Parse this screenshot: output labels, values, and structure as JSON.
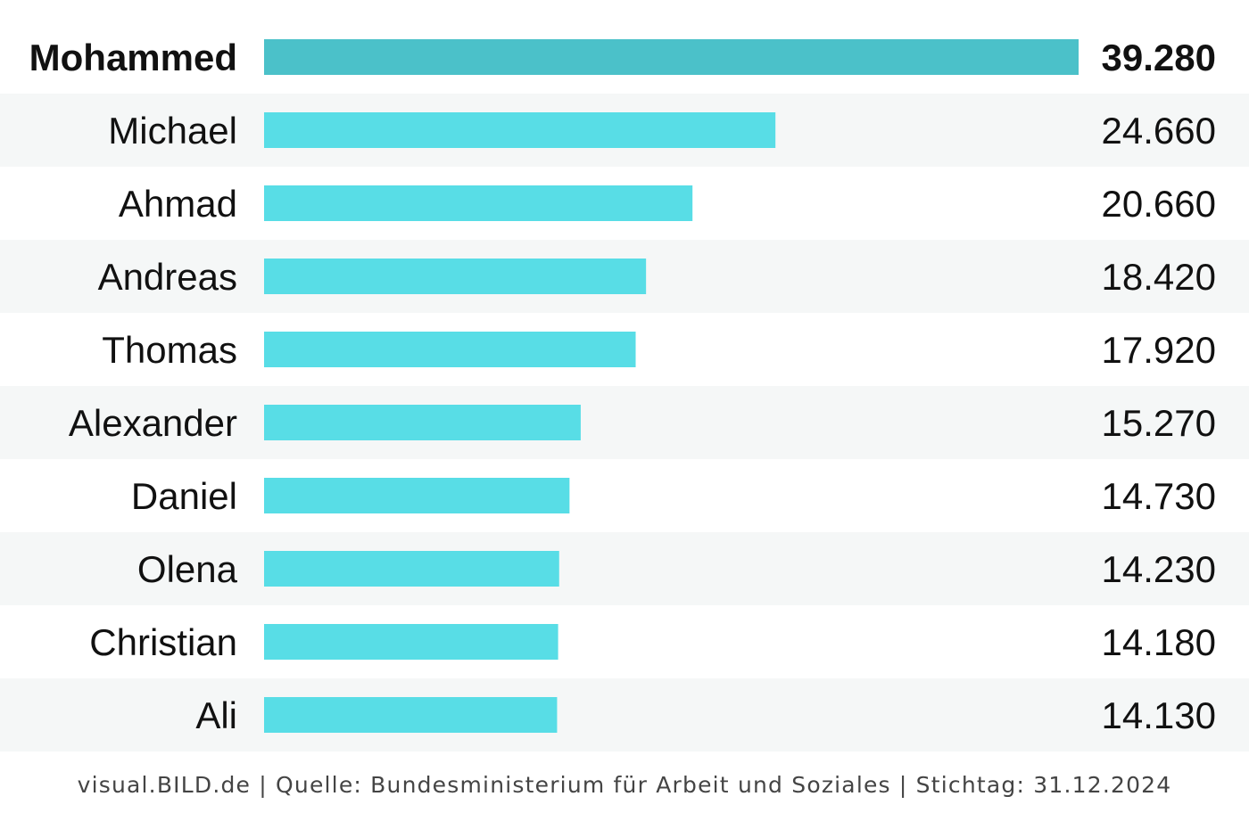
{
  "chart_data": {
    "type": "bar",
    "orientation": "horizontal",
    "categories": [
      "Mohammed",
      "Michael",
      "Ahmad",
      "Andreas",
      "Thomas",
      "Alexander",
      "Daniel",
      "Olena",
      "Christian",
      "Ali"
    ],
    "values": [
      39280,
      24660,
      20660,
      18420,
      17920,
      15270,
      14730,
      14230,
      14180,
      14130
    ],
    "value_labels": [
      "39.280",
      "24.660",
      "20.660",
      "18.420",
      "17.920",
      "15.270",
      "14.730",
      "14.230",
      "14.180",
      "14.130"
    ],
    "highlighted_category": "Mohammed",
    "xlim": [
      0,
      39280
    ],
    "grid": false,
    "legend": "none"
  },
  "colors": {
    "bar": "#58dde6",
    "bar_highlight": "#4bc1c9",
    "row_stripe": "#f5f7f7",
    "text": "#111111",
    "footer_text": "#444444"
  },
  "footer": {
    "source": "visual.BILD.de | Quelle: Bundesministerium für Arbeit und Soziales | Stichtag: 31.12.2024"
  }
}
